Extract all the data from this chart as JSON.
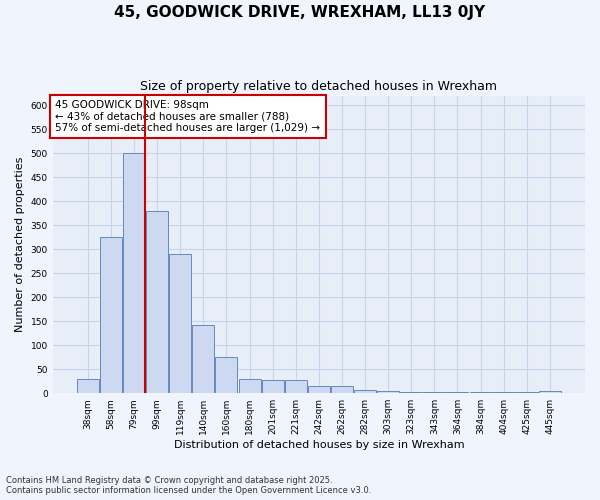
{
  "title": "45, GOODWICK DRIVE, WREXHAM, LL13 0JY",
  "subtitle": "Size of property relative to detached houses in Wrexham",
  "xlabel": "Distribution of detached houses by size in Wrexham",
  "ylabel": "Number of detached properties",
  "bar_values": [
    30,
    325,
    500,
    380,
    290,
    143,
    75,
    30,
    28,
    27,
    15,
    14,
    6,
    5,
    3,
    3,
    3,
    3,
    3,
    3,
    5
  ],
  "bar_labels": [
    "38sqm",
    "58sqm",
    "79sqm",
    "99sqm",
    "119sqm",
    "140sqm",
    "160sqm",
    "180sqm",
    "201sqm",
    "221sqm",
    "242sqm",
    "262sqm",
    "282sqm",
    "303sqm",
    "323sqm",
    "343sqm",
    "364sqm",
    "384sqm",
    "404sqm",
    "425sqm",
    "445sqm"
  ],
  "bar_color": "#ccd9f0",
  "bar_edge_color": "#6688bb",
  "grid_color": "#c8d4eb",
  "bg_color": "#e8eef8",
  "red_line_color": "#cc0000",
  "annotation_line1": "45 GOODWICK DRIVE: 98sqm",
  "annotation_line2": "← 43% of detached houses are smaller (788)",
  "annotation_line3": "57% of semi-detached houses are larger (1,029) →",
  "annotation_box_color": "#ffffff",
  "annotation_edge_color": "#cc0000",
  "footnote": "Contains HM Land Registry data © Crown copyright and database right 2025.\nContains public sector information licensed under the Open Government Licence v3.0.",
  "ylim": [
    0,
    620
  ],
  "yticks": [
    0,
    50,
    100,
    150,
    200,
    250,
    300,
    350,
    400,
    450,
    500,
    550,
    600
  ]
}
